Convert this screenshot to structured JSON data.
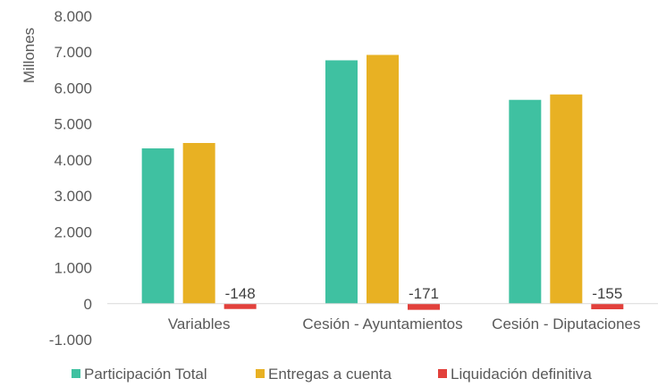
{
  "chart_data": {
    "type": "bar",
    "ylabel": "Millones",
    "ylim": [
      -1000,
      8000
    ],
    "yticks": [
      -1000,
      0,
      1000,
      2000,
      3000,
      4000,
      5000,
      6000,
      7000,
      8000
    ],
    "ytick_labels": [
      "-1.000",
      "0",
      "1.000",
      "2.000",
      "3.000",
      "4.000",
      "5.000",
      "6.000",
      "7.000",
      "8.000"
    ],
    "categories": [
      "Variables",
      "Cesión - Ayuntamientos",
      "Cesión - Diputaciones"
    ],
    "series": [
      {
        "name": "Participación Total",
        "color": "#3fc1a1",
        "values": [
          4320,
          6770,
          5670
        ]
      },
      {
        "name": "Entregas a cuenta",
        "color": "#e8b123",
        "values": [
          4470,
          6920,
          5820
        ]
      },
      {
        "name": "Liquidación definitiva",
        "color": "#e2403b",
        "values": [
          -148,
          -171,
          -155
        ],
        "data_labels": [
          "-148",
          "-171",
          "-155"
        ]
      }
    ],
    "legend": "bottom",
    "grid": false
  }
}
